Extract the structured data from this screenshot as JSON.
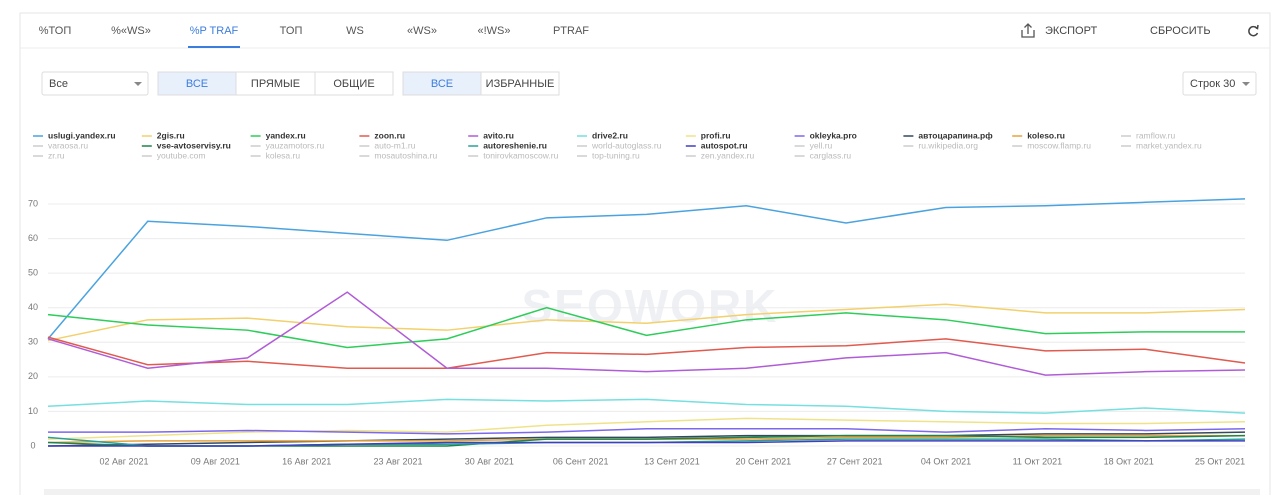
{
  "tabs": [
    "%ТОП",
    "%«WS»",
    "%P TRAF",
    "ТОП",
    "WS",
    "«WS»",
    "«!WS»",
    "PTRAF"
  ],
  "active_tab": 2,
  "actions": {
    "export": "ЭКСПОРТ",
    "reset": "СБРОСИТЬ"
  },
  "filters": {
    "select": "Все",
    "type_buttons": [
      "ВСЕ",
      "ПРЯМЫЕ",
      "ОБЩИЕ"
    ],
    "active_type": 0,
    "fav_buttons": [
      "ВСЕ",
      "ИЗБРАННЫЕ"
    ],
    "active_fav": 0,
    "rows": "Строк 30"
  },
  "chart_data": {
    "type": "line",
    "watermark": "SEOWORK",
    "categories": [
      "02 Авг 2021",
      "09 Авг 2021",
      "16 Авг 2021",
      "23 Авг 2021",
      "30 Авг 2021",
      "06 Сент 2021",
      "13 Сент 2021",
      "20 Сент 2021",
      "27 Сент 2021",
      "04 Окт 2021",
      "11 Окт 2021",
      "18 Окт 2021",
      "25 Окт 2021"
    ],
    "ylim": [
      0,
      75
    ],
    "yticks": [
      0,
      10,
      20,
      30,
      40,
      50,
      60,
      70
    ],
    "grid": true,
    "series": [
      {
        "name": "uslugi.yandex.ru",
        "color": "#4aa3df",
        "values": [
          31,
          65,
          63.5,
          61.5,
          59.5,
          66,
          67,
          69.5,
          64.5,
          69,
          69.5,
          70.5,
          71.5
        ]
      },
      {
        "name": "2gis.ru",
        "color": "#f2d06b",
        "values": [
          30.5,
          36.5,
          37,
          34.5,
          33.5,
          36.5,
          35.5,
          38,
          39.5,
          41,
          38.5,
          38.5,
          39.5
        ]
      },
      {
        "name": "yandex.ru",
        "color": "#2ecc5a",
        "values": [
          38,
          35,
          33.5,
          28.5,
          31,
          40,
          32,
          36.5,
          38.5,
          36.5,
          32.5,
          33,
          33
        ]
      },
      {
        "name": "zoon.ru",
        "color": "#e05a4f",
        "values": [
          31.5,
          23.5,
          24.5,
          22.5,
          22.5,
          27,
          26.5,
          28.5,
          29,
          31,
          27.5,
          28,
          24
        ]
      },
      {
        "name": "avito.ru",
        "color": "#b05cd6",
        "values": [
          31,
          22.5,
          25.5,
          44.5,
          22.5,
          22.5,
          21.5,
          22.5,
          25.5,
          27,
          20.5,
          21.5,
          22
        ]
      },
      {
        "name": "drive2.ru",
        "color": "#76dfe0",
        "values": [
          11.5,
          13,
          12,
          12,
          13.5,
          13,
          13.5,
          12,
          11.5,
          10,
          9.5,
          11,
          9.5
        ]
      },
      {
        "name": "profi.ru",
        "color": "#efe38a",
        "values": [
          2,
          3,
          4,
          4.5,
          4,
          6,
          7,
          8,
          7.5,
          7,
          6.5,
          6.5,
          7
        ]
      },
      {
        "name": "okleyka.pro",
        "color": "#7b68ee",
        "values": [
          4,
          4,
          4.5,
          4,
          3.5,
          4,
          5,
          5,
          5,
          4,
          5,
          4.5,
          5
        ]
      },
      {
        "name": "автоцарапина.рф",
        "color": "#34495e",
        "values": [
          0,
          0.5,
          1,
          1.5,
          2,
          2.5,
          2.5,
          3,
          3,
          3,
          3.5,
          3.5,
          4
        ]
      },
      {
        "name": "koleso.ru",
        "color": "#e8a33d",
        "values": [
          1,
          1.5,
          1.5,
          1.5,
          1.5,
          2,
          2,
          2,
          2.5,
          2.5,
          3,
          3,
          3
        ]
      },
      {
        "name": "ramflow.ru",
        "color": "#cccccc",
        "hidden": true
      },
      {
        "name": "varaosa.ru",
        "color": "#cccccc",
        "hidden": true
      },
      {
        "name": "vse-avtoservisy.ru",
        "color": "#1e8449",
        "values": [
          1,
          0,
          0,
          0,
          0,
          2,
          2,
          2.5,
          3,
          3,
          2.5,
          2.5,
          3
        ]
      },
      {
        "name": "yauzamotors.ru",
        "color": "#cccccc",
        "hidden": true
      },
      {
        "name": "auto-m1.ru",
        "color": "#cccccc",
        "hidden": true
      },
      {
        "name": "autoreshenie.ru",
        "color": "#2aa198",
        "values": [
          2.5,
          0,
          0,
          0.5,
          0.5,
          1,
          1,
          1.5,
          2,
          2,
          2,
          1.5,
          2
        ]
      },
      {
        "name": "world-autoglass.ru",
        "color": "#cccccc",
        "hidden": true
      },
      {
        "name": "autospot.ru",
        "color": "#3f3fbf",
        "values": [
          0,
          0,
          0,
          0.5,
          1,
          1,
          1,
          1,
          1.5,
          1.5,
          1.5,
          1.5,
          1.5
        ]
      },
      {
        "name": "yell.ru",
        "color": "#cccccc",
        "hidden": true
      },
      {
        "name": "ru.wikipedia.org",
        "color": "#cccccc",
        "hidden": true
      },
      {
        "name": "moscow.flamp.ru",
        "color": "#cccccc",
        "hidden": true
      },
      {
        "name": "market.yandex.ru",
        "color": "#cccccc",
        "hidden": true
      },
      {
        "name": "zr.ru",
        "color": "#cccccc",
        "hidden": true
      },
      {
        "name": "youtube.com",
        "color": "#cccccc",
        "hidden": true
      },
      {
        "name": "kolesa.ru",
        "color": "#cccccc",
        "hidden": true
      },
      {
        "name": "mosautoshina.ru",
        "color": "#cccccc",
        "hidden": true
      },
      {
        "name": "tonirovkamoscow.ru",
        "color": "#cccccc",
        "hidden": true
      },
      {
        "name": "top-tuning.ru",
        "color": "#cccccc",
        "hidden": true
      },
      {
        "name": "zen.yandex.ru",
        "color": "#cccccc",
        "hidden": true
      },
      {
        "name": "carglass.ru",
        "color": "#cccccc",
        "hidden": true
      }
    ]
  }
}
